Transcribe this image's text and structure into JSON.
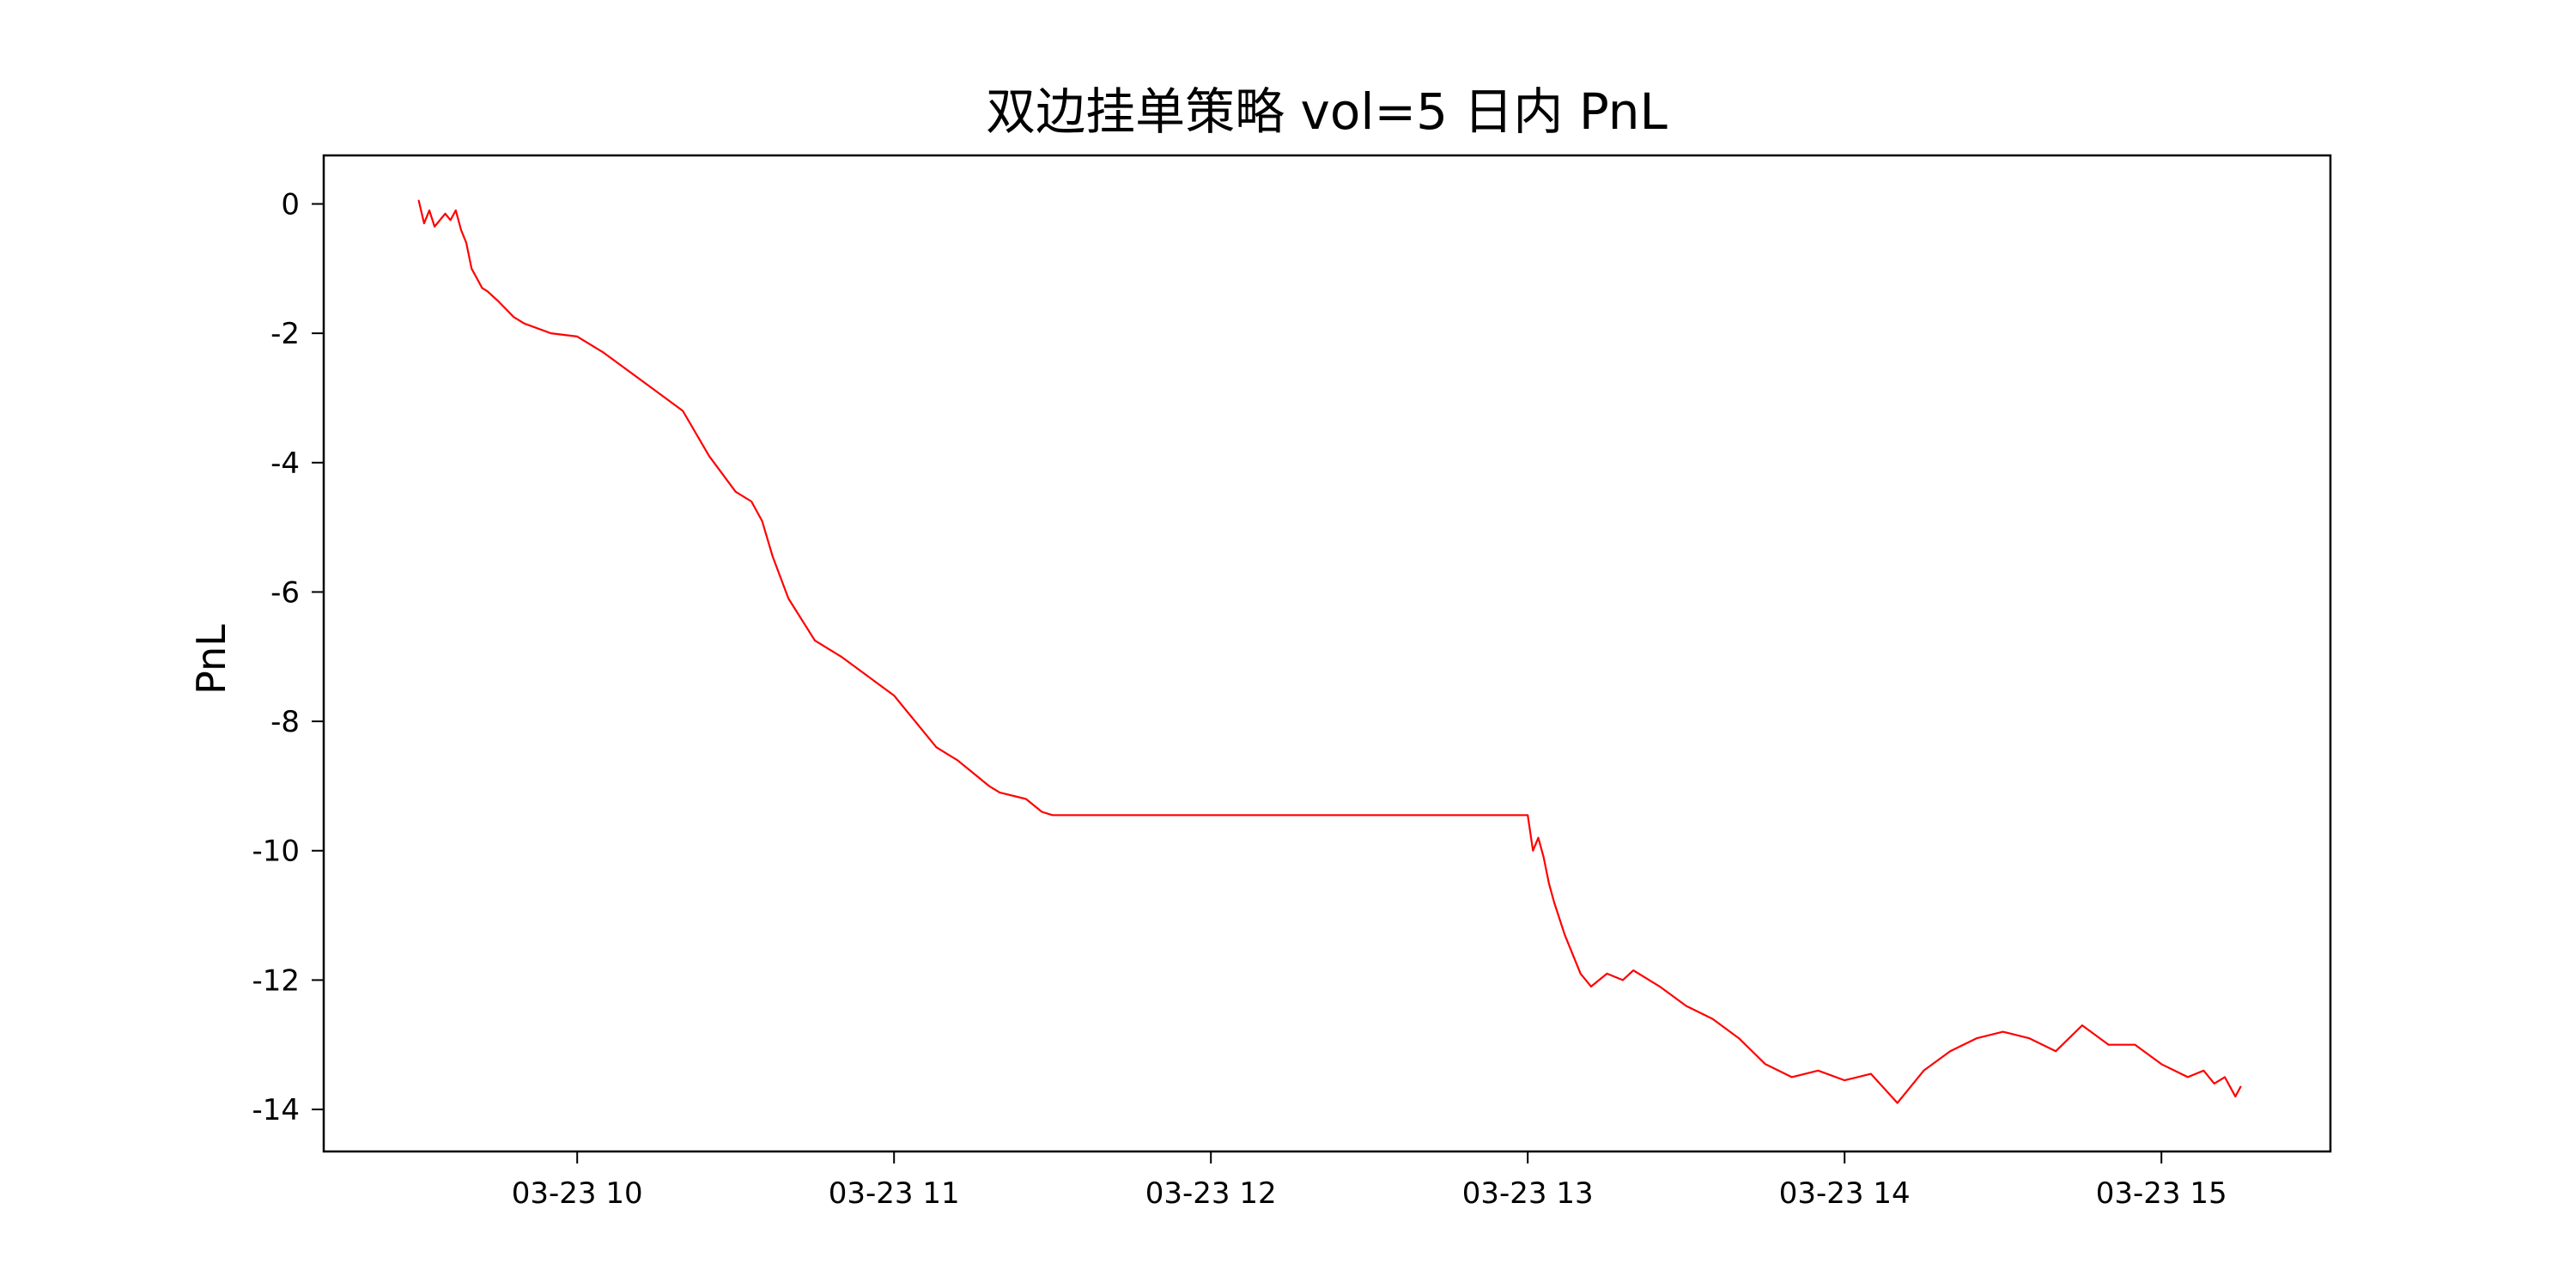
{
  "chart_data": {
    "type": "line",
    "title": "双边挂单策略  vol=5 日内 PnL",
    "xlabel": "",
    "ylabel": "PnL",
    "line_color": "#ff0000",
    "grid": false,
    "legend": "none",
    "xlim": [
      "2023-03-23 09:12",
      "2023-03-23 15:32"
    ],
    "ylim": [
      -14.65,
      0.75
    ],
    "x_ticks": [
      {
        "value": "2023-03-23 10:00",
        "label": "03-23 10"
      },
      {
        "value": "2023-03-23 11:00",
        "label": "03-23 11"
      },
      {
        "value": "2023-03-23 12:00",
        "label": "03-23 12"
      },
      {
        "value": "2023-03-23 13:00",
        "label": "03-23 13"
      },
      {
        "value": "2023-03-23 14:00",
        "label": "03-23 14"
      },
      {
        "value": "2023-03-23 15:00",
        "label": "03-23 15"
      }
    ],
    "y_ticks": [
      {
        "value": 0,
        "label": "0"
      },
      {
        "value": -2,
        "label": "-2"
      },
      {
        "value": -4,
        "label": "-4"
      },
      {
        "value": -6,
        "label": "-6"
      },
      {
        "value": -8,
        "label": "-8"
      },
      {
        "value": -10,
        "label": "-10"
      },
      {
        "value": -12,
        "label": "-12"
      },
      {
        "value": -14,
        "label": "-14"
      }
    ],
    "series": [
      {
        "x": [
          "2023-03-23 09:30",
          "2023-03-23 09:31",
          "2023-03-23 09:32",
          "2023-03-23 09:33",
          "2023-03-23 09:35",
          "2023-03-23 09:36",
          "2023-03-23 09:37",
          "2023-03-23 09:38",
          "2023-03-23 09:39",
          "2023-03-23 09:40",
          "2023-03-23 09:42",
          "2023-03-23 09:43",
          "2023-03-23 09:45",
          "2023-03-23 09:48",
          "2023-03-23 09:50",
          "2023-03-23 09:55",
          "2023-03-23 10:00",
          "2023-03-23 10:05",
          "2023-03-23 10:10",
          "2023-03-23 10:15",
          "2023-03-23 10:20",
          "2023-03-23 10:25",
          "2023-03-23 10:30",
          "2023-03-23 10:33",
          "2023-03-23 10:35",
          "2023-03-23 10:37",
          "2023-03-23 10:40",
          "2023-03-23 10:45",
          "2023-03-23 10:50",
          "2023-03-23 10:55",
          "2023-03-23 11:00",
          "2023-03-23 11:05",
          "2023-03-23 11:08",
          "2023-03-23 11:10",
          "2023-03-23 11:12",
          "2023-03-23 11:15",
          "2023-03-23 11:18",
          "2023-03-23 11:20",
          "2023-03-23 11:25",
          "2023-03-23 11:28",
          "2023-03-23 11:30",
          "2023-03-23 13:00",
          "2023-03-23 13:01",
          "2023-03-23 13:02",
          "2023-03-23 13:03",
          "2023-03-23 13:04",
          "2023-03-23 13:05",
          "2023-03-23 13:07",
          "2023-03-23 13:10",
          "2023-03-23 13:12",
          "2023-03-23 13:15",
          "2023-03-23 13:18",
          "2023-03-23 13:20",
          "2023-03-23 13:25",
          "2023-03-23 13:30",
          "2023-03-23 13:35",
          "2023-03-23 13:40",
          "2023-03-23 13:45",
          "2023-03-23 13:50",
          "2023-03-23 13:55",
          "2023-03-23 14:00",
          "2023-03-23 14:05",
          "2023-03-23 14:10",
          "2023-03-23 14:15",
          "2023-03-23 14:20",
          "2023-03-23 14:25",
          "2023-03-23 14:30",
          "2023-03-23 14:35",
          "2023-03-23 14:40",
          "2023-03-23 14:45",
          "2023-03-23 14:50",
          "2023-03-23 14:55",
          "2023-03-23 15:00",
          "2023-03-23 15:05",
          "2023-03-23 15:08",
          "2023-03-23 15:10",
          "2023-03-23 15:12",
          "2023-03-23 15:14",
          "2023-03-23 15:15"
        ],
        "values": [
          0.05,
          -0.3,
          -0.1,
          -0.35,
          -0.15,
          -0.25,
          -0.1,
          -0.4,
          -0.6,
          -1.0,
          -1.3,
          -1.35,
          -1.5,
          -1.75,
          -1.85,
          -2.0,
          -2.05,
          -2.3,
          -2.6,
          -2.9,
          -3.2,
          -3.9,
          -4.45,
          -4.6,
          -4.9,
          -5.45,
          -6.1,
          -6.75,
          -7.0,
          -7.3,
          -7.6,
          -8.1,
          -8.4,
          -8.5,
          -8.6,
          -8.8,
          -9.0,
          -9.1,
          -9.2,
          -9.4,
          -9.45,
          -9.45,
          -10.0,
          -9.8,
          -10.1,
          -10.5,
          -10.8,
          -11.3,
          -11.9,
          -12.1,
          -11.9,
          -12.0,
          -11.85,
          -12.1,
          -12.4,
          -12.6,
          -12.9,
          -13.3,
          -13.5,
          -13.4,
          -13.55,
          -13.45,
          -13.9,
          -13.4,
          -13.1,
          -12.9,
          -12.8,
          -12.9,
          -13.1,
          -12.7,
          -13.0,
          -13.0,
          -13.3,
          -13.5,
          -13.4,
          -13.6,
          -13.5,
          -13.8,
          -13.65
        ]
      }
    ]
  }
}
